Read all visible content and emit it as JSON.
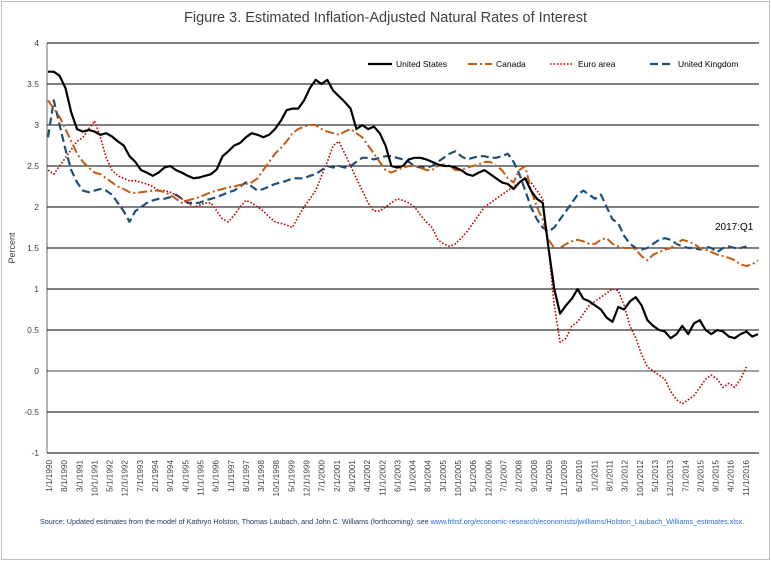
{
  "chart_data": {
    "type": "line",
    "title": "Figure 3.  Estimated Inflation-Adjusted Natural Rates of Interest",
    "ylabel": "Percent",
    "xlabel": "",
    "ylim": [
      -1,
      4
    ],
    "yticks": [
      "-1",
      "-0.5",
      "0",
      "0.5",
      "1",
      "1.5",
      "2",
      "2.5",
      "3",
      "3.5",
      "4"
    ],
    "grid": "horizontal",
    "legend_position": "top-right",
    "annotation": "2017:Q1",
    "x_tick_labels": [
      "1/1/1990",
      "8/1/1990",
      "3/1/1991",
      "10/1/1991",
      "5/1/1992",
      "12/1/1992",
      "7/1/1993",
      "2/1/1994",
      "9/1/1994",
      "4/1/1995",
      "11/1/1995",
      "6/1/1996",
      "1/1/1997",
      "8/1/1997",
      "3/1/1998",
      "10/1/1998",
      "5/1/1999",
      "12/1/1999",
      "7/1/2000",
      "2/1/2001",
      "9/1/2001",
      "4/1/2002",
      "11/1/2002",
      "6/1/2003",
      "1/1/2004",
      "8/1/2004",
      "3/1/2005",
      "10/1/2005",
      "5/1/2006",
      "12/1/2006",
      "7/1/2007",
      "2/1/2008",
      "9/1/2008",
      "4/1/2009",
      "11/1/2009",
      "6/1/2010",
      "1/1/2011",
      "8/1/2011",
      "3/1/2012",
      "10/1/2012",
      "5/1/2013",
      "12/1/2013",
      "7/1/2014",
      "2/1/2015",
      "9/1/2015",
      "4/1/2016",
      "11/1/2016"
    ],
    "x_start": "1990-Q1",
    "x_frequency": "quarterly",
    "series": [
      {
        "name": "United States",
        "color": "#000000",
        "style": "solid",
        "values": [
          3.65,
          3.65,
          3.6,
          3.45,
          3.15,
          2.95,
          2.92,
          2.94,
          2.92,
          2.88,
          2.9,
          2.86,
          2.8,
          2.75,
          2.62,
          2.55,
          2.45,
          2.42,
          2.38,
          2.42,
          2.48,
          2.5,
          2.45,
          2.42,
          2.38,
          2.35,
          2.36,
          2.38,
          2.4,
          2.46,
          2.62,
          2.68,
          2.75,
          2.78,
          2.85,
          2.9,
          2.88,
          2.85,
          2.88,
          2.95,
          3.05,
          3.18,
          3.2,
          3.2,
          3.3,
          3.45,
          3.55,
          3.5,
          3.55,
          3.42,
          3.35,
          3.28,
          3.2,
          2.95,
          3.0,
          2.95,
          2.98,
          2.9,
          2.75,
          2.5,
          2.48,
          2.5,
          2.58,
          2.6,
          2.6,
          2.58,
          2.55,
          2.52,
          2.5,
          2.5,
          2.48,
          2.45,
          2.4,
          2.38,
          2.42,
          2.45,
          2.4,
          2.35,
          2.3,
          2.28,
          2.22,
          2.3,
          2.35,
          2.2,
          2.1,
          2.05,
          1.5,
          1.0,
          0.7,
          0.8,
          0.88,
          1.0,
          0.88,
          0.85,
          0.8,
          0.75,
          0.65,
          0.6,
          0.78,
          0.75,
          0.85,
          0.9,
          0.8,
          0.62,
          0.55,
          0.5,
          0.48,
          0.4,
          0.45,
          0.55,
          0.45,
          0.58,
          0.62,
          0.5,
          0.45,
          0.5,
          0.48,
          0.42,
          0.4,
          0.45,
          0.48,
          0.42,
          0.45
        ]
      },
      {
        "name": "Canada",
        "color": "#c55a11",
        "style": "dashdot",
        "values": [
          3.3,
          3.2,
          3.1,
          2.95,
          2.8,
          2.65,
          2.55,
          2.48,
          2.42,
          2.4,
          2.35,
          2.3,
          2.25,
          2.22,
          2.18,
          2.17,
          2.18,
          2.19,
          2.2,
          2.2,
          2.18,
          2.15,
          2.1,
          2.05,
          2.08,
          2.1,
          2.12,
          2.15,
          2.18,
          2.2,
          2.22,
          2.24,
          2.25,
          2.27,
          2.28,
          2.3,
          2.35,
          2.45,
          2.55,
          2.65,
          2.72,
          2.8,
          2.9,
          2.95,
          2.98,
          3.0,
          3.0,
          2.95,
          2.92,
          2.9,
          2.88,
          2.92,
          2.95,
          2.9,
          2.85,
          2.75,
          2.65,
          2.55,
          2.45,
          2.42,
          2.45,
          2.48,
          2.5,
          2.5,
          2.48,
          2.45,
          2.45,
          2.5,
          2.52,
          2.5,
          2.45,
          2.45,
          2.48,
          2.5,
          2.52,
          2.55,
          2.55,
          2.5,
          2.45,
          2.35,
          2.3,
          2.45,
          2.5,
          2.2,
          2.0,
          1.85,
          1.6,
          1.5,
          1.5,
          1.55,
          1.58,
          1.6,
          1.58,
          1.55,
          1.55,
          1.6,
          1.62,
          1.55,
          1.52,
          1.5,
          1.5,
          1.48,
          1.4,
          1.35,
          1.42,
          1.45,
          1.48,
          1.5,
          1.55,
          1.6,
          1.58,
          1.55,
          1.5,
          1.48,
          1.45,
          1.42,
          1.4,
          1.38,
          1.35,
          1.3,
          1.28,
          1.3,
          1.35
        ]
      },
      {
        "name": "Euro area",
        "color": "#c00000",
        "style": "dotted",
        "values": [
          2.45,
          2.4,
          2.5,
          2.6,
          2.7,
          2.8,
          2.85,
          2.95,
          3.05,
          2.85,
          2.6,
          2.45,
          2.38,
          2.35,
          2.32,
          2.32,
          2.3,
          2.28,
          2.25,
          2.2,
          2.2,
          2.18,
          2.15,
          2.1,
          2.05,
          2.0,
          2.02,
          2.05,
          2.05,
          1.95,
          1.85,
          1.82,
          1.9,
          2.0,
          2.08,
          2.05,
          2.0,
          1.95,
          1.88,
          1.82,
          1.8,
          1.78,
          1.75,
          1.88,
          2.0,
          2.1,
          2.2,
          2.38,
          2.55,
          2.75,
          2.8,
          2.65,
          2.5,
          2.35,
          2.2,
          2.05,
          1.95,
          1.95,
          2.0,
          2.05,
          2.1,
          2.08,
          2.05,
          2.0,
          1.9,
          1.82,
          1.75,
          1.6,
          1.55,
          1.52,
          1.55,
          1.62,
          1.7,
          1.8,
          1.9,
          2.0,
          2.05,
          2.1,
          2.15,
          2.2,
          2.25,
          2.3,
          2.35,
          2.3,
          2.2,
          2.1,
          1.5,
          0.8,
          0.35,
          0.4,
          0.55,
          0.6,
          0.7,
          0.8,
          0.85,
          0.9,
          0.95,
          1.0,
          0.98,
          0.8,
          0.55,
          0.4,
          0.2,
          0.05,
          0.0,
          -0.05,
          -0.1,
          -0.25,
          -0.35,
          -0.4,
          -0.35,
          -0.3,
          -0.2,
          -0.1,
          -0.05,
          -0.1,
          -0.2,
          -0.15,
          -0.2,
          -0.1,
          0.05
        ]
      },
      {
        "name": "United Kingdom",
        "color": "#1f4e79",
        "style": "dashed",
        "values": [
          2.85,
          3.3,
          3.0,
          2.7,
          2.45,
          2.3,
          2.2,
          2.18,
          2.2,
          2.22,
          2.2,
          2.15,
          2.05,
          1.95,
          1.82,
          1.95,
          2.0,
          2.05,
          2.08,
          2.1,
          2.1,
          2.12,
          2.15,
          2.1,
          2.05,
          2.05,
          2.05,
          2.08,
          2.1,
          2.12,
          2.15,
          2.18,
          2.2,
          2.25,
          2.3,
          2.25,
          2.2,
          2.22,
          2.25,
          2.28,
          2.3,
          2.32,
          2.35,
          2.35,
          2.35,
          2.38,
          2.4,
          2.45,
          2.5,
          2.48,
          2.5,
          2.48,
          2.5,
          2.55,
          2.6,
          2.6,
          2.58,
          2.6,
          2.62,
          2.62,
          2.6,
          2.58,
          2.55,
          2.5,
          2.48,
          2.48,
          2.5,
          2.55,
          2.6,
          2.65,
          2.68,
          2.62,
          2.58,
          2.6,
          2.62,
          2.62,
          2.6,
          2.6,
          2.62,
          2.65,
          2.55,
          2.4,
          2.2,
          2.0,
          1.85,
          1.75,
          1.7,
          1.75,
          1.85,
          1.95,
          2.05,
          2.15,
          2.2,
          2.15,
          2.1,
          2.15,
          2.0,
          1.85,
          1.8,
          1.65,
          1.55,
          1.5,
          1.48,
          1.5,
          1.55,
          1.6,
          1.62,
          1.6,
          1.55,
          1.52,
          1.5,
          1.5,
          1.48,
          1.52,
          1.5,
          1.45,
          1.5,
          1.52,
          1.5,
          1.5,
          1.52
        ]
      }
    ]
  },
  "source_note": {
    "text": "Source: Updated estimates from the model of Kathryn Holston, Thomas Laubach, and John C. Williams (forthcoming): see ",
    "link": "www.frbsf.org/economic-research/economists/jwilliams/Holston_Laubach_Williams_estimates.xlsx."
  }
}
